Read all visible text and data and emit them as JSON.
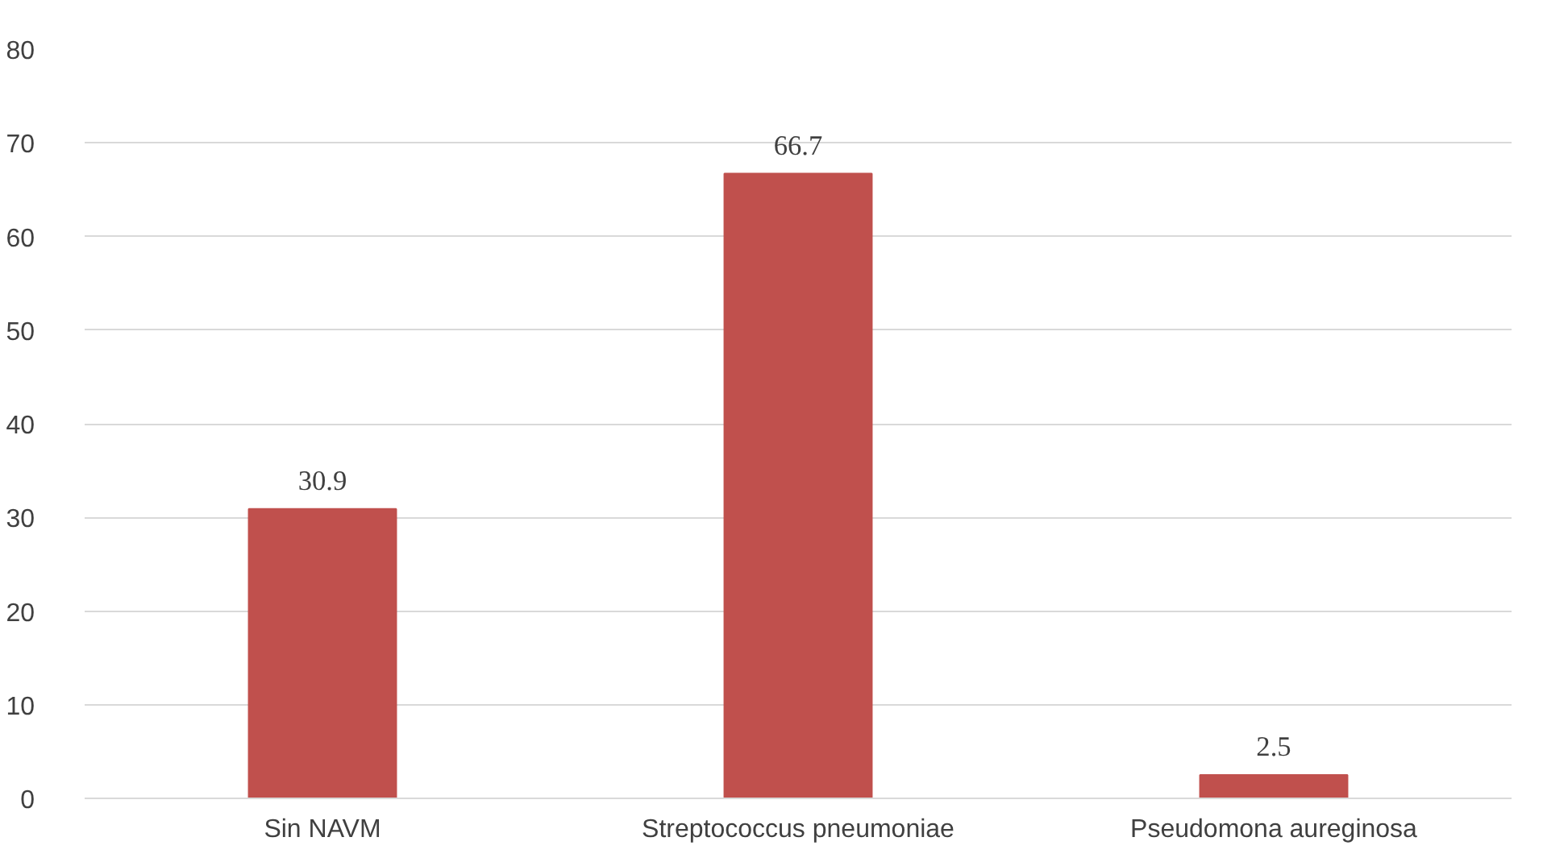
{
  "chart_data": {
    "type": "bar",
    "categories": [
      "Sin NAVM",
      "Streptococcus pneumoniae",
      "Pseudomona aureginosa"
    ],
    "values": [
      30.9,
      66.7,
      2.5
    ],
    "color": "#c0504d",
    "ylim": [
      0,
      80
    ],
    "yticks": [
      0,
      10,
      20,
      30,
      40,
      50,
      60,
      70,
      80
    ],
    "grid": "y",
    "data_labels": true
  }
}
